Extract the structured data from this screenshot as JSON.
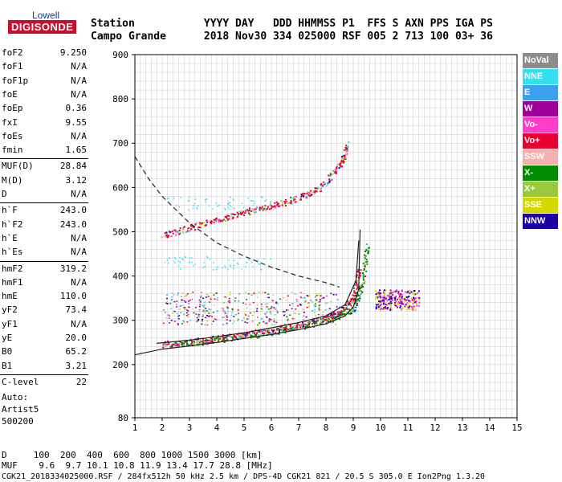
{
  "logo": {
    "top": "Lowell",
    "main": "DIGISONDE"
  },
  "header": {
    "labels": "Station           YYYY DAY   DDD HHMMSS P1  FFS S AXN PPS IGA PS",
    "values": "Campo Grande      2018 Nov30 334 025000 RSF 005 2 713 100 03+ 36"
  },
  "params": [
    {
      "k": "foF2",
      "v": "9.250"
    },
    {
      "k": "foF1",
      "v": "N/A"
    },
    {
      "k": "foF1p",
      "v": "N/A"
    },
    {
      "k": "foE",
      "v": "N/A"
    },
    {
      "k": "foEp",
      "v": "0.36"
    },
    {
      "k": "fxI",
      "v": "9.55"
    },
    {
      "k": "foEs",
      "v": "N/A"
    },
    {
      "k": "fmin",
      "v": "1.65"
    },
    {
      "k": "MUF(D)",
      "v": "28.84"
    },
    {
      "k": "M(D)",
      "v": "3.12"
    },
    {
      "k": "D",
      "v": "N/A"
    },
    {
      "k": "h`F",
      "v": "243.0"
    },
    {
      "k": "h`F2",
      "v": "243.0"
    },
    {
      "k": "h`E",
      "v": "N/A"
    },
    {
      "k": "h`Es",
      "v": "N/A"
    },
    {
      "k": "hmF2",
      "v": "319.2"
    },
    {
      "k": "hmF1",
      "v": "N/A"
    },
    {
      "k": "hmE",
      "v": "110.0"
    },
    {
      "k": "yF2",
      "v": "73.4"
    },
    {
      "k": "yF1",
      "v": "N/A"
    },
    {
      "k": "yE",
      "v": "20.0"
    },
    {
      "k": "B0",
      "v": "65.2"
    },
    {
      "k": "B1",
      "v": "3.21"
    },
    {
      "k": "C-level",
      "v": "22"
    }
  ],
  "autoscale": {
    "line1": "Auto:",
    "line2": "Artist5",
    "line3": "500200"
  },
  "legend": [
    {
      "label": "NoVal",
      "color": "#8c8c8c"
    },
    {
      "label": "NNE",
      "color": "#33e0f0"
    },
    {
      "label": "E",
      "color": "#3aa0f0"
    },
    {
      "label": "W",
      "color": "#a0009a"
    },
    {
      "label": "Vo-",
      "color": "#ff3cc8"
    },
    {
      "label": "Vo+",
      "color": "#e8002e"
    },
    {
      "label": "SSW",
      "color": "#f5b0b0"
    },
    {
      "label": "X-",
      "color": "#008c00"
    },
    {
      "label": "X+",
      "color": "#9ac83c"
    },
    {
      "label": "SSE",
      "color": "#d6d600"
    },
    {
      "label": "NNW",
      "color": "#1a00a8"
    }
  ],
  "footer": {
    "row1": "D     100  200  400  600  800 1000 1500 3000 [km]",
    "row2": "MUF    9.6  9.7 10.1 10.8 11.9 13.4 17.7 28.8 [MHz]",
    "row3": "CGK21_2018334025000.RSF / 284fx512h 50 kHz 2.5 km / DPS-4D CGK21 821 / 20.5 S 305.0 E Ion2Png 1.3.20"
  },
  "chart_data": {
    "type": "scatter",
    "xlim": [
      1,
      15
    ],
    "ylim": [
      80,
      900
    ],
    "x_ticks": [
      1,
      2,
      3,
      4,
      5,
      6,
      7,
      8,
      9,
      10,
      11,
      12,
      13,
      14,
      15
    ],
    "y_ticks": [
      80,
      200,
      300,
      400,
      500,
      600,
      700,
      800,
      900
    ],
    "grid": true,
    "series": [
      {
        "name": "foF2 trace (O)",
        "color": "#e8002e",
        "points": [
          [
            2,
            246
          ],
          [
            3,
            252
          ],
          [
            4,
            260
          ],
          [
            5,
            268
          ],
          [
            6,
            278
          ],
          [
            7,
            290
          ],
          [
            8,
            305
          ],
          [
            8.5,
            320
          ],
          [
            9,
            350
          ],
          [
            9.2,
            420
          ]
        ]
      },
      {
        "name": "X trace",
        "color": "#008c00",
        "points": [
          [
            2.4,
            246
          ],
          [
            3.5,
            253
          ],
          [
            5,
            265
          ],
          [
            6.5,
            280
          ],
          [
            8,
            300
          ],
          [
            9,
            325
          ],
          [
            9.3,
            380
          ],
          [
            9.5,
            470
          ]
        ]
      },
      {
        "name": "F2 multihop",
        "color": "#e8002e",
        "points": [
          [
            2,
            492
          ],
          [
            3,
            510
          ],
          [
            4,
            528
          ],
          [
            5,
            545
          ],
          [
            6,
            560
          ],
          [
            7,
            578
          ],
          [
            7.8,
            600
          ],
          [
            8.5,
            650
          ],
          [
            8.8,
            700
          ]
        ]
      }
    ],
    "profile_lines": [
      {
        "name": "true height profile",
        "points": [
          [
            1,
            222
          ],
          [
            2,
            235
          ],
          [
            3,
            242
          ],
          [
            4,
            250
          ],
          [
            5,
            259
          ],
          [
            6,
            268
          ],
          [
            7,
            279
          ],
          [
            8,
            292
          ],
          [
            8.7,
            310
          ],
          [
            9,
            330
          ],
          [
            9.2,
            370
          ],
          [
            9.25,
            505
          ]
        ]
      },
      {
        "name": "model profile",
        "points": [
          [
            1.8,
            248
          ],
          [
            3,
            255
          ],
          [
            4,
            263
          ],
          [
            5,
            272
          ],
          [
            6,
            283
          ],
          [
            7,
            295
          ],
          [
            8,
            310
          ],
          [
            8.7,
            335
          ],
          [
            9.1,
            390
          ],
          [
            9.2,
            480
          ]
        ]
      },
      {
        "name": "MUF dashed",
        "dashed": true,
        "points": [
          [
            1,
            670
          ],
          [
            1.5,
            620
          ],
          [
            2,
            580
          ],
          [
            3,
            520
          ],
          [
            4,
            475
          ],
          [
            5,
            445
          ],
          [
            6,
            420
          ],
          [
            7,
            400
          ],
          [
            8,
            385
          ],
          [
            8.5,
            375
          ]
        ]
      }
    ]
  }
}
